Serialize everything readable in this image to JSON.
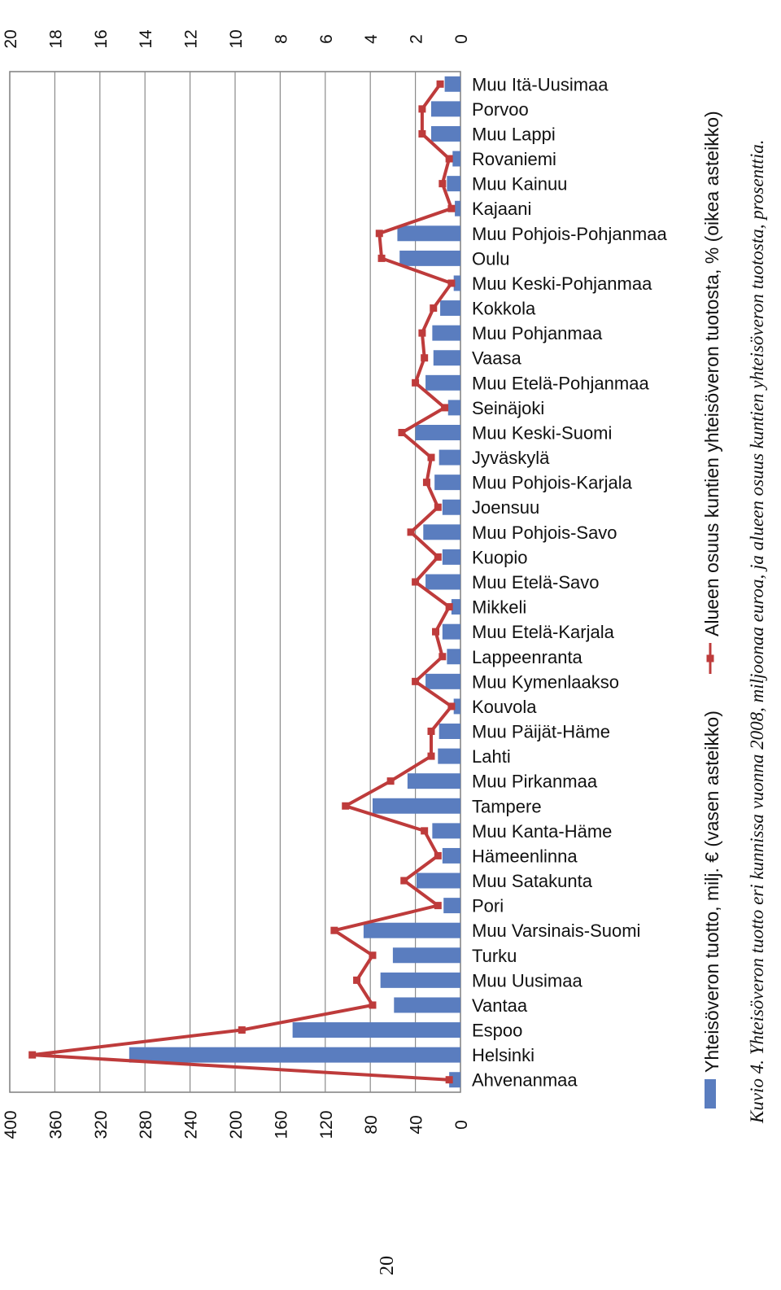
{
  "page_number": "20",
  "caption": "Kuvio 4. Yhteisöveron tuotto eri kunnissa vuonna 2008, miljoonaa euroa, ja alueen osuus kuntien yhteisöveron tuotosta, prosenttia.",
  "colors": {
    "bar": "#5A7DBF",
    "line": "#BE3B3B",
    "grid": "#8a8a8a",
    "border": "#7f7f7f"
  },
  "chart_data": {
    "type": "bar",
    "categories": [
      "Ahvenanmaa",
      "Helsinki",
      "Espoo",
      "Vantaa",
      "Muu Uusimaa",
      "Turku",
      "Muu Varsinais-Suomi",
      "Pori",
      "Muu Satakunta",
      "Hämeenlinna",
      "Muu Kanta-Häme",
      "Tampere",
      "Muu Pirkanmaa",
      "Lahti",
      "Muu Päijät-Häme",
      "Kouvola",
      "Muu Kymenlaakso",
      "Lappeenranta",
      "Muu Etelä-Karjala",
      "Mikkeli",
      "Muu Etelä-Savo",
      "Kuopio",
      "Muu Pohjois-Savo",
      "Joensuu",
      "Muu Pohjois-Karjala",
      "Jyväskylä",
      "Muu Keski-Suomi",
      "Seinäjoki",
      "Muu Etelä-Pohjanmaa",
      "Vaasa",
      "Muu Pohjanmaa",
      "Kokkola",
      "Muu Keski-Pohjanmaa",
      "Oulu",
      "Muu Pohjois-Pohjanmaa",
      "Kajaani",
      "Muu Kainuu",
      "Rovaniemi",
      "Muu Lappi",
      "Porvoo",
      "Muu Itä-Uusimaa"
    ],
    "series": [
      {
        "name": "Yhteisöveron tuotto, milj. € (vasen asteikko)",
        "axis": "left",
        "chart_type": "bar",
        "values": [
          10,
          294,
          149,
          59,
          71,
          60,
          86,
          15,
          39,
          16,
          25,
          78,
          47,
          20,
          19,
          6,
          31,
          12,
          16,
          8,
          31,
          16,
          33,
          16,
          23,
          19,
          40,
          11,
          31,
          24,
          25,
          18,
          6,
          54,
          56,
          5,
          12,
          7,
          26,
          26,
          14
        ]
      },
      {
        "name": "Alueen osuus kuntien yhteisöveron tuotosta, % (oikea asteikko)",
        "axis": "right",
        "chart_type": "line",
        "values": [
          0.5,
          19.0,
          9.7,
          3.9,
          4.6,
          3.9,
          5.6,
          1.0,
          2.5,
          1.0,
          1.6,
          5.1,
          3.1,
          1.3,
          1.3,
          0.4,
          2.0,
          0.8,
          1.1,
          0.5,
          2.0,
          1.0,
          2.2,
          1.0,
          1.5,
          1.3,
          2.6,
          0.7,
          2.0,
          1.6,
          1.7,
          1.2,
          0.4,
          3.5,
          3.6,
          0.4,
          0.8,
          0.5,
          1.7,
          1.7,
          0.9
        ]
      }
    ],
    "y_left_ticks": [
      "0",
      "40",
      "80",
      "120",
      "160",
      "200",
      "240",
      "280",
      "320",
      "360",
      "400"
    ],
    "y_right_ticks": [
      "0",
      "2",
      "4",
      "6",
      "8",
      "10",
      "12",
      "14",
      "16",
      "18",
      "20"
    ],
    "ylim_left": [
      0,
      400
    ],
    "ylim_right": [
      0,
      20
    ],
    "grid": true,
    "legend_position": "bottom"
  }
}
